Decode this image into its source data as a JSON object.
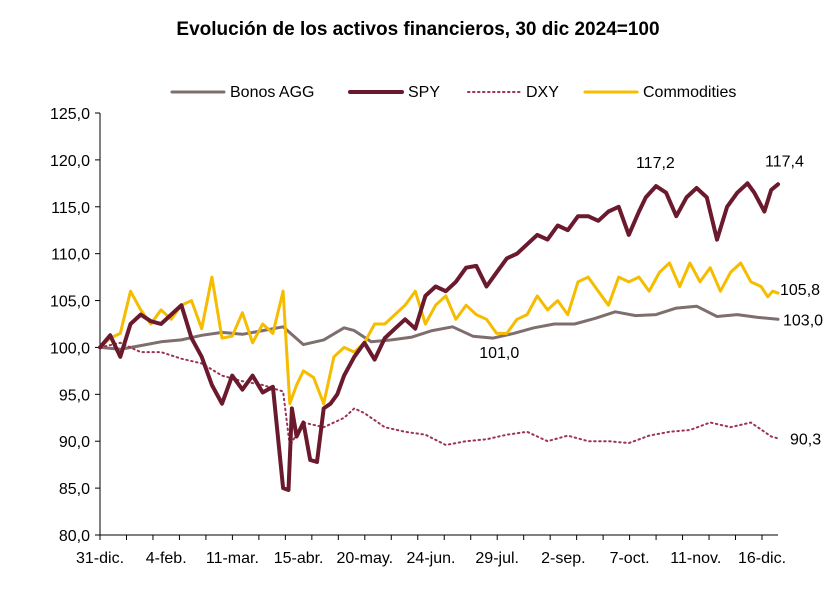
{
  "chart_data": {
    "type": "line",
    "title": "Evolución de los activos financieros, 30 dic 2024=100",
    "xlabel": "",
    "ylabel": "",
    "ylim": [
      80,
      125
    ],
    "ytick_step": 5,
    "ytick_labels": [
      "80,0",
      "85,0",
      "90,0",
      "95,0",
      "100,0",
      "105,0",
      "110,0",
      "115,0",
      "120,0",
      "125,0"
    ],
    "x_tick_labels": [
      "31-dic.",
      "4-feb.",
      "11-mar.",
      "15-abr.",
      "20-may.",
      "24-jun.",
      "29-jul.",
      "2-sep.",
      "7-oct.",
      "11-nov.",
      "16-dic."
    ],
    "x_range": [
      0,
      100
    ],
    "legend_position": "top",
    "series": [
      {
        "name": "Bonos AGG",
        "color": "#7F6E6E",
        "style": "solid",
        "width": 3,
        "x": [
          0,
          3,
          6,
          9,
          12,
          15,
          18,
          21,
          24,
          27,
          30,
          33,
          36,
          37.5,
          40,
          43,
          46,
          49,
          52,
          55,
          58,
          61,
          64,
          67,
          70,
          73,
          76,
          79,
          82,
          85,
          88,
          91,
          94,
          97,
          100
        ],
        "values": [
          100,
          99.8,
          100.2,
          100.6,
          100.8,
          101.3,
          101.6,
          101.4,
          101.8,
          102.2,
          100.3,
          100.8,
          102.1,
          101.8,
          100.6,
          100.8,
          101.1,
          101.8,
          102.2,
          101.2,
          101.0,
          101.5,
          102.1,
          102.5,
          102.5,
          103.1,
          103.8,
          103.4,
          103.5,
          104.2,
          104.4,
          103.3,
          103.5,
          103.2,
          103.0
        ]
      },
      {
        "name": "SPY",
        "color": "#6B1A2E",
        "style": "solid",
        "width": 4,
        "x": [
          0,
          1.5,
          3,
          4.5,
          6,
          7.5,
          9,
          10.5,
          12,
          13.5,
          15,
          16.5,
          18,
          19.5,
          21,
          22.5,
          24,
          25.5,
          27,
          27.8,
          28.3,
          29,
          30,
          31,
          32,
          33,
          34,
          35,
          36,
          37.5,
          39,
          40.5,
          42,
          43.5,
          45,
          46.5,
          48,
          49.5,
          51,
          52.5,
          54,
          55.5,
          57,
          58.5,
          60,
          61.5,
          63,
          64.5,
          66,
          67.5,
          69,
          70.5,
          72,
          73.5,
          75,
          76.5,
          78,
          79.5,
          80.5,
          82,
          83.5,
          85,
          86.5,
          88,
          89.5,
          91,
          92.5,
          94,
          95.5,
          96.5,
          98,
          99,
          100
        ],
        "values": [
          100,
          101.3,
          99,
          102.5,
          103.5,
          102.8,
          102.5,
          103.5,
          104.5,
          101,
          99,
          96,
          94,
          97,
          95.5,
          97,
          95.2,
          95.8,
          85,
          84.8,
          93.5,
          90.5,
          92,
          88,
          87.8,
          93.5,
          94,
          95,
          97,
          99,
          100.5,
          98.7,
          101,
          102,
          103,
          102,
          105.5,
          106.5,
          106,
          107,
          108.5,
          108.7,
          106.5,
          108,
          109.5,
          110,
          111,
          112,
          111.5,
          113,
          112.5,
          114,
          114,
          113.5,
          114.5,
          115,
          112,
          114.5,
          116,
          117.2,
          116.5,
          114,
          116,
          117,
          116,
          111.5,
          115,
          116.5,
          117.5,
          116.5,
          114.5,
          116.8,
          117.4
        ]
      },
      {
        "name": "DXY",
        "color": "#9C3452",
        "style": "dotted",
        "width": 2,
        "x": [
          0,
          3,
          6,
          9,
          12,
          15,
          18,
          21,
          24,
          27,
          28,
          30,
          33,
          36,
          37.5,
          39,
          42,
          45,
          48,
          51,
          54,
          57,
          60,
          63,
          66,
          69,
          72,
          75,
          78,
          81,
          84,
          87,
          90,
          93,
          96,
          99,
          100
        ],
        "values": [
          100,
          100.5,
          99.5,
          99.5,
          98.8,
          98.3,
          97,
          96.4,
          96,
          95.3,
          89.5,
          92,
          91.5,
          92.5,
          93.5,
          93,
          91.5,
          91,
          90.7,
          89.6,
          90,
          90.2,
          90.7,
          91,
          90,
          90.6,
          90,
          90,
          89.8,
          90.6,
          91,
          91.2,
          92,
          91.5,
          92,
          90.5,
          90.3
        ]
      },
      {
        "name": "Commodities",
        "color": "#F5BC00",
        "style": "solid",
        "width": 3,
        "x": [
          0,
          1.5,
          3,
          4.5,
          6,
          7.5,
          9,
          10.5,
          12,
          13.5,
          15,
          16.5,
          18,
          19.5,
          21,
          22.5,
          24,
          25.5,
          27,
          28,
          29,
          30,
          31.5,
          33,
          34.5,
          36,
          37.5,
          39,
          40.5,
          42,
          43.5,
          45,
          46.5,
          48,
          49.5,
          51,
          52.5,
          54,
          55.5,
          57,
          58.5,
          60,
          61.5,
          63,
          64.5,
          66,
          67.5,
          69,
          70.5,
          72,
          73.5,
          75,
          76.5,
          78,
          79.5,
          81,
          82.5,
          84,
          85.5,
          87,
          88.5,
          90,
          91.5,
          93,
          94.5,
          96,
          97.5,
          98.5,
          99.2,
          100
        ],
        "values": [
          100,
          101,
          101.5,
          106,
          104,
          102.5,
          104,
          103,
          104.5,
          105,
          102,
          107.5,
          101,
          101.2,
          103.7,
          100.5,
          102.5,
          101.5,
          106,
          94,
          96,
          97.5,
          96.8,
          94,
          99,
          100,
          99.5,
          100.5,
          102.5,
          102.5,
          103.5,
          104.5,
          106,
          102.5,
          104.5,
          105.5,
          103,
          104.5,
          103.5,
          103,
          101.5,
          101.5,
          103,
          103.5,
          105.5,
          104,
          105,
          103.5,
          107,
          107.5,
          106,
          104.5,
          107.5,
          107,
          107.5,
          106,
          108,
          109,
          106.5,
          109,
          107,
          108.5,
          106,
          108,
          109,
          107,
          106.5,
          105.4,
          106,
          105.8
        ]
      }
    ],
    "annotations": [
      {
        "text": "117,2",
        "series": "SPY",
        "at_x": 82
      },
      {
        "text": "117,4",
        "series": "SPY",
        "at_x": 100
      },
      {
        "text": "105,8",
        "series": "Commodities",
        "at_x": 100
      },
      {
        "text": "103,0",
        "series": "Bonos AGG",
        "at_x": 100
      },
      {
        "text": "101,0",
        "series": "Bonos AGG",
        "at_x": 58
      },
      {
        "text": "90,3",
        "series": "DXY",
        "at_x": 100
      }
    ]
  }
}
